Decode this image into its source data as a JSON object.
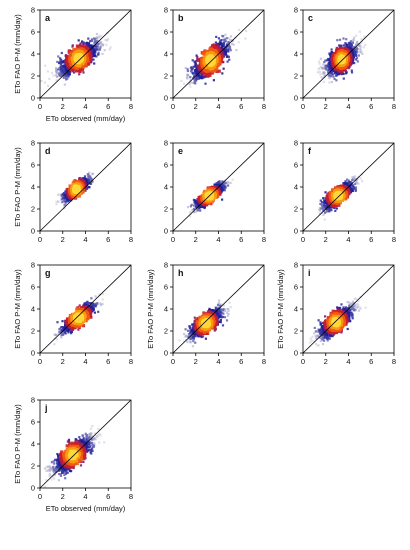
{
  "figure": {
    "panel_count": 10
  },
  "colors": {
    "axis": "#000000",
    "one_to_one_line": "#000000",
    "density_ramp": [
      "#c6c6da",
      "#9e9ec8",
      "#6a6ab4",
      "#3a3aa6",
      "#1f1f98",
      "#7a1f72",
      "#c8202a",
      "#ef5a14",
      "#fb9b12",
      "#ffd83a"
    ]
  },
  "chart_data": [
    {
      "type": "scatter",
      "density": true,
      "panel_label": "a",
      "xlabel": "ETo observed (mm/day)",
      "ylabel": "ETo FAO P-M (mm/day)",
      "xlim": [
        0,
        8
      ],
      "ylim": [
        0,
        8
      ],
      "xticks": [
        0,
        2,
        4,
        6,
        8
      ],
      "yticks": [
        0,
        2,
        4,
        6,
        8
      ],
      "reference_line": "1:1",
      "cloud": {
        "center": [
          3.4,
          3.6
        ],
        "sx": 1.7,
        "sy": 1.5,
        "rho": 0.78,
        "core_sx": 0.6,
        "core_sy": 0.7,
        "xmax": 7.5,
        "ymax": 7.6
      }
    },
    {
      "type": "scatter",
      "density": true,
      "panel_label": "b",
      "xlabel": "",
      "ylabel": "",
      "xlim": [
        0,
        8
      ],
      "ylim": [
        0,
        8
      ],
      "xticks": [
        0,
        2,
        4,
        6,
        8
      ],
      "yticks": [
        0,
        2,
        4,
        6,
        8
      ],
      "reference_line": "1:1",
      "cloud": {
        "center": [
          3.3,
          3.4
        ],
        "sx": 1.5,
        "sy": 1.5,
        "rho": 0.75,
        "core_sx": 0.6,
        "core_sy": 0.8,
        "xmax": 7.0,
        "ymax": 7.2
      }
    },
    {
      "type": "scatter",
      "density": true,
      "panel_label": "c",
      "xlabel": "",
      "ylabel": "",
      "xlim": [
        0,
        8
      ],
      "ylim": [
        0,
        8
      ],
      "xticks": [
        0,
        2,
        4,
        6,
        8
      ],
      "yticks": [
        0,
        2,
        4,
        6,
        8
      ],
      "reference_line": "1:1",
      "cloud": {
        "center": [
          3.4,
          3.5
        ],
        "sx": 1.3,
        "sy": 1.3,
        "rho": 0.6,
        "core_sx": 0.45,
        "core_sy": 0.6,
        "xmax": 6.5,
        "ymax": 6.5
      }
    },
    {
      "type": "scatter",
      "density": true,
      "panel_label": "d",
      "xlabel": "",
      "ylabel": "ETo FAO P-M (mm/day)",
      "xlim": [
        0,
        8
      ],
      "ylim": [
        0,
        8
      ],
      "xticks": [
        0,
        2,
        4,
        6,
        8
      ],
      "yticks": [
        0,
        2,
        4,
        6,
        8
      ],
      "reference_line": "1:1",
      "cloud": {
        "center": [
          3.2,
          3.8
        ],
        "sx": 1.0,
        "sy": 0.9,
        "rho": 0.8,
        "core_sx": 0.45,
        "core_sy": 0.55,
        "xmax": 5.6,
        "ymax": 6.0
      }
    },
    {
      "type": "scatter",
      "density": true,
      "panel_label": "e",
      "xlabel": "",
      "ylabel": "",
      "xlim": [
        0,
        8
      ],
      "ylim": [
        0,
        8
      ],
      "xticks": [
        0,
        2,
        4,
        6,
        8
      ],
      "yticks": [
        0,
        2,
        4,
        6,
        8
      ],
      "reference_line": "1:1",
      "cloud": {
        "center": [
          3.2,
          3.2
        ],
        "sx": 1.1,
        "sy": 1.0,
        "rho": 0.85,
        "core_sx": 0.55,
        "core_sy": 0.5,
        "xmax": 5.5,
        "ymax": 5.5
      }
    },
    {
      "type": "scatter",
      "density": true,
      "panel_label": "f",
      "xlabel": "",
      "ylabel": "",
      "xlim": [
        0,
        8
      ],
      "ylim": [
        0,
        8
      ],
      "xticks": [
        0,
        2,
        4,
        6,
        8
      ],
      "yticks": [
        0,
        2,
        4,
        6,
        8
      ],
      "reference_line": "1:1",
      "cloud": {
        "center": [
          3.1,
          3.2
        ],
        "sx": 1.2,
        "sy": 1.1,
        "rho": 0.8,
        "core_sx": 0.55,
        "core_sy": 0.55,
        "xmax": 6.5,
        "ymax": 6.5
      }
    },
    {
      "type": "scatter",
      "density": true,
      "panel_label": "g",
      "xlabel": "",
      "ylabel": "ETo FAO P-M (mm/day)",
      "xlim": [
        0,
        8
      ],
      "ylim": [
        0,
        8
      ],
      "xticks": [
        0,
        2,
        4,
        6,
        8
      ],
      "yticks": [
        0,
        2,
        4,
        6,
        8
      ],
      "reference_line": "1:1",
      "cloud": {
        "center": [
          3.4,
          3.2
        ],
        "sx": 1.3,
        "sy": 1.2,
        "rho": 0.85,
        "core_sx": 0.65,
        "core_sy": 0.6,
        "xmax": 6.2,
        "ymax": 6.0
      }
    },
    {
      "type": "scatter",
      "density": true,
      "panel_label": "h",
      "xlabel": "",
      "ylabel": "ETo FAO P-M (mm/day)",
      "xlim": [
        0,
        8
      ],
      "ylim": [
        0,
        8
      ],
      "xticks": [
        0,
        2,
        4,
        6,
        8
      ],
      "yticks": [
        0,
        2,
        4,
        6,
        8
      ],
      "reference_line": "1:1",
      "cloud": {
        "center": [
          2.9,
          2.7
        ],
        "sx": 1.3,
        "sy": 1.2,
        "rho": 0.78,
        "core_sx": 0.55,
        "core_sy": 0.6,
        "xmax": 7.0,
        "ymax": 6.5
      }
    },
    {
      "type": "scatter",
      "density": true,
      "panel_label": "i",
      "xlabel": "",
      "ylabel": "ETo FAO P-M (mm/day)",
      "xlim": [
        0,
        8
      ],
      "ylim": [
        0,
        8
      ],
      "xticks": [
        0,
        2,
        4,
        6,
        8
      ],
      "yticks": [
        0,
        2,
        4,
        6,
        8
      ],
      "reference_line": "1:1",
      "cloud": {
        "center": [
          2.9,
          2.8
        ],
        "sx": 1.4,
        "sy": 1.3,
        "rho": 0.8,
        "core_sx": 0.55,
        "core_sy": 0.6,
        "xmax": 7.0,
        "ymax": 6.5
      }
    },
    {
      "type": "scatter",
      "density": true,
      "panel_label": "j",
      "xlabel": "ETo observed (mm/day)",
      "ylabel": "ETo FAO P-M (mm/day)",
      "xlim": [
        0,
        8
      ],
      "ylim": [
        0,
        8
      ],
      "xticks": [
        0,
        2,
        4,
        6,
        8
      ],
      "yticks": [
        0,
        2,
        4,
        6,
        8
      ],
      "reference_line": "1:1",
      "cloud": {
        "center": [
          2.9,
          3.0
        ],
        "sx": 1.6,
        "sy": 1.5,
        "rho": 0.78,
        "core_sx": 0.6,
        "core_sy": 0.65,
        "xmax": 7.6,
        "ymax": 7.6
      }
    }
  ]
}
